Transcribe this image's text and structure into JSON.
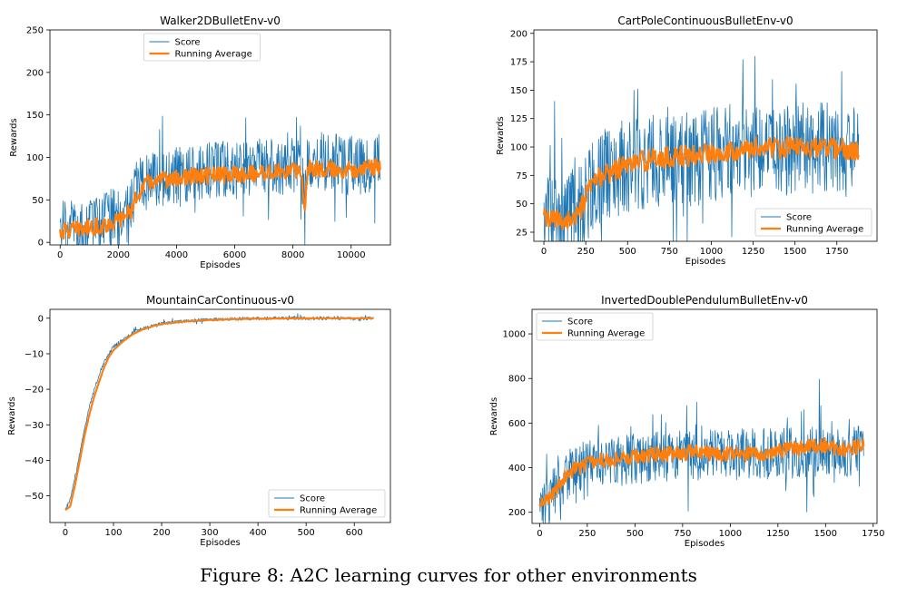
{
  "figure": {
    "caption": "Figure 8: A2C learning curves for other environments"
  },
  "colors": {
    "score": "#1f77b4",
    "running_average": "#ff7f0e"
  },
  "chart_data": [
    {
      "type": "line",
      "title": "Walker2DBulletEnv-v0",
      "xlabel": "Episodes",
      "ylabel": "Rewards",
      "xlim": [
        -350,
        11350
      ],
      "ylim": [
        -3,
        250
      ],
      "xticks": [
        0,
        2000,
        4000,
        6000,
        8000,
        10000
      ],
      "yticks": [
        0,
        50,
        100,
        150,
        200,
        250
      ],
      "legend": "top-center",
      "series": [
        {
          "name": "Score",
          "kind": "score",
          "x": [
            0,
            500,
            1000,
            1500,
            2000,
            2500,
            2700,
            3000,
            3500,
            4000,
            4500,
            5000,
            5500,
            6000,
            6500,
            7000,
            7500,
            8000,
            8300,
            8400,
            8500,
            9000,
            9500,
            10000,
            10500,
            11000
          ],
          "y": [
            15,
            18,
            20,
            25,
            30,
            45,
            70,
            75,
            78,
            80,
            82,
            83,
            84,
            85,
            86,
            87,
            88,
            89,
            88,
            40,
            95,
            95,
            92,
            90,
            92,
            93
          ]
        },
        {
          "name": "Running Average",
          "kind": "avg",
          "x": [
            0,
            500,
            1000,
            1500,
            2000,
            2500,
            2700,
            3000,
            3500,
            4000,
            4500,
            5000,
            5500,
            6000,
            6500,
            7000,
            7500,
            8000,
            8300,
            8400,
            8500,
            9000,
            9500,
            10000,
            10500,
            11000
          ],
          "y": [
            13,
            15,
            17,
            20,
            25,
            40,
            60,
            70,
            73,
            75,
            77,
            78,
            79,
            80,
            81,
            82,
            83,
            84,
            84,
            30,
            88,
            87,
            85,
            86,
            88,
            88
          ]
        }
      ]
    },
    {
      "type": "line",
      "title": "CartPoleContinuousBulletEnv-v0",
      "xlabel": "Episodes",
      "ylabel": "Rewards",
      "xlim": [
        -60,
        1990
      ],
      "ylim": [
        17,
        203
      ],
      "xticks": [
        0,
        250,
        500,
        750,
        1000,
        1250,
        1500,
        1750
      ],
      "yticks": [
        25,
        50,
        75,
        100,
        125,
        150,
        175,
        200
      ],
      "legend": "bottom-right",
      "series": [
        {
          "name": "Score",
          "kind": "score",
          "x": [
            0,
            100,
            200,
            250,
            300,
            400,
            500,
            600,
            700,
            800,
            900,
            1000,
            1100,
            1200,
            1300,
            1400,
            1500,
            1600,
            1700,
            1800,
            1880
          ],
          "y": [
            38,
            36,
            40,
            55,
            70,
            78,
            82,
            86,
            88,
            90,
            92,
            94,
            95,
            96,
            98,
            97,
            98,
            99,
            98,
            97,
            95
          ]
        },
        {
          "name": "Running Average",
          "kind": "avg",
          "x": [
            0,
            100,
            200,
            250,
            300,
            400,
            500,
            600,
            700,
            800,
            900,
            1000,
            1100,
            1200,
            1300,
            1400,
            1500,
            1600,
            1700,
            1800,
            1880
          ],
          "y": [
            37,
            35,
            38,
            55,
            70,
            78,
            85,
            88,
            90,
            92,
            92,
            95,
            97,
            98,
            100,
            99,
            100,
            100,
            99,
            98,
            95
          ]
        }
      ]
    },
    {
      "type": "line",
      "title": "MountainCarContinuous-v0",
      "xlabel": "Episodes",
      "ylabel": "Rewards",
      "xlim": [
        -32,
        675
      ],
      "ylim": [
        -57.5,
        2.5
      ],
      "xticks": [
        0,
        100,
        200,
        300,
        400,
        500,
        600
      ],
      "yticks": [
        0,
        -10,
        -20,
        -30,
        -40,
        -50
      ],
      "legend": "bottom-right",
      "series": [
        {
          "name": "Score",
          "kind": "score",
          "x": [
            0,
            10,
            20,
            30,
            40,
            50,
            60,
            70,
            80,
            90,
            100,
            120,
            140,
            160,
            180,
            200,
            250,
            300,
            350,
            400,
            450,
            500,
            550,
            600,
            640
          ],
          "y": [
            -54,
            -51,
            -45,
            -38,
            -31,
            -25,
            -20,
            -16,
            -12.5,
            -10,
            -8,
            -6,
            -4,
            -3,
            -2.2,
            -1.5,
            -0.8,
            -0.4,
            -0.2,
            -0.1,
            -0.05,
            0,
            0,
            0,
            0
          ]
        },
        {
          "name": "Running Average",
          "kind": "avg",
          "x": [
            0,
            10,
            20,
            30,
            40,
            50,
            60,
            70,
            80,
            90,
            100,
            120,
            140,
            160,
            180,
            200,
            250,
            300,
            350,
            400,
            450,
            500,
            550,
            600,
            640
          ],
          "y": [
            -54,
            -53,
            -47,
            -40,
            -33,
            -27,
            -22,
            -18,
            -14,
            -11,
            -9,
            -6.5,
            -4.5,
            -3.2,
            -2.3,
            -1.6,
            -0.9,
            -0.5,
            -0.25,
            -0.12,
            -0.06,
            -0.02,
            0,
            0,
            0
          ]
        }
      ]
    },
    {
      "type": "line",
      "title": "InvertedDoublePendulumBulletEnv-v0",
      "xlabel": "Episodes",
      "ylabel": "Rewards",
      "xlim": [
        -40,
        1770
      ],
      "ylim": [
        150,
        1110
      ],
      "xticks": [
        0,
        250,
        500,
        750,
        1000,
        1250,
        1500,
        1750
      ],
      "yticks": [
        200,
        400,
        600,
        800,
        1000
      ],
      "legend": "top-left",
      "series": [
        {
          "name": "Score",
          "kind": "score",
          "x": [
            0,
            50,
            100,
            150,
            200,
            250,
            300,
            400,
            500,
            600,
            700,
            800,
            900,
            1000,
            1100,
            1200,
            1300,
            1400,
            1500,
            1600,
            1700
          ],
          "y": [
            210,
            260,
            320,
            370,
            400,
            410,
            420,
            430,
            440,
            445,
            450,
            455,
            455,
            460,
            460,
            462,
            465,
            470,
            470,
            472,
            475
          ]
        },
        {
          "name": "Running Average",
          "kind": "avg",
          "x": [
            0,
            50,
            100,
            150,
            200,
            250,
            300,
            400,
            500,
            600,
            700,
            800,
            900,
            1000,
            1100,
            1200,
            1300,
            1400,
            1500,
            1600,
            1700
          ],
          "y": [
            220,
            270,
            320,
            380,
            400,
            420,
            430,
            440,
            450,
            460,
            460,
            470,
            460,
            460,
            460,
            470,
            480,
            490,
            500,
            480,
            500
          ]
        }
      ]
    }
  ]
}
